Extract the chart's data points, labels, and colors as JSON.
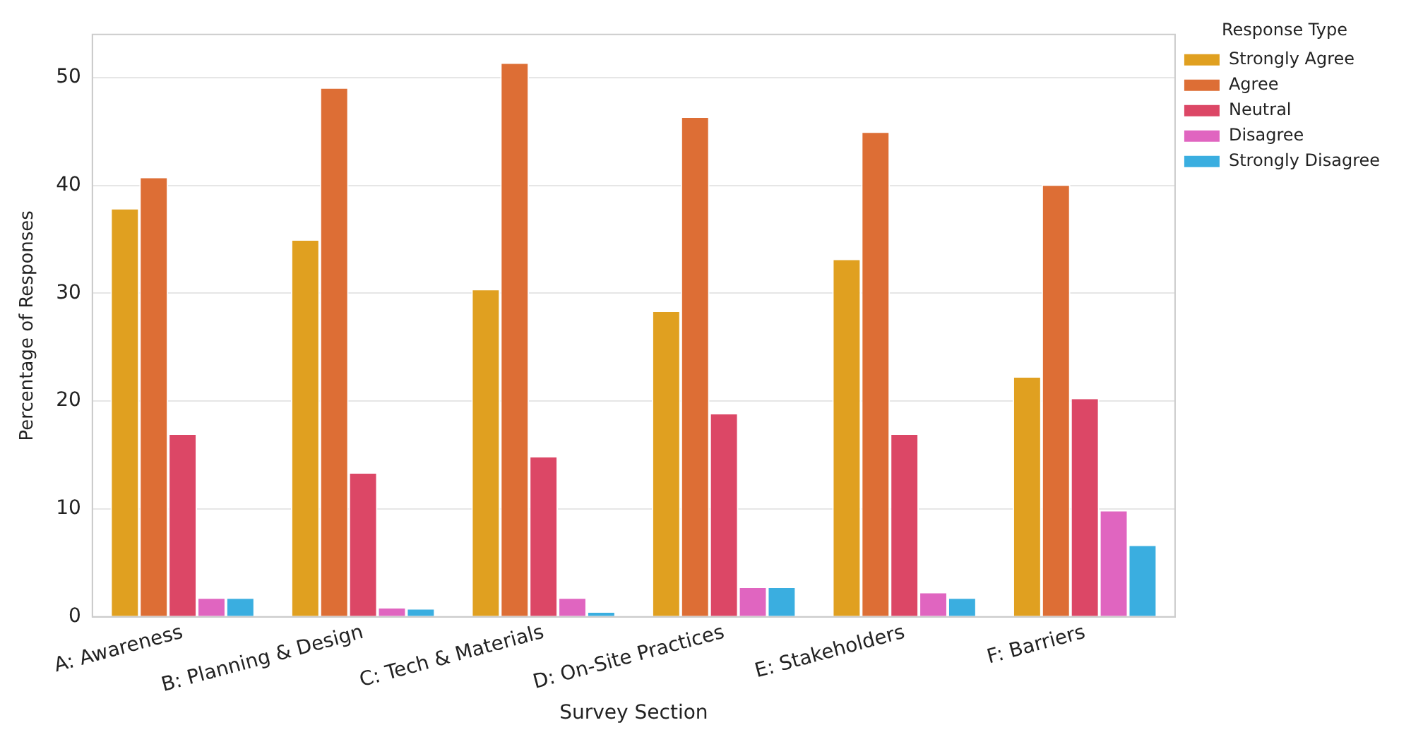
{
  "chart_data": {
    "type": "bar",
    "xlabel": "Survey Section",
    "ylabel": "Percentage of Responses",
    "legend_title": "Response Type",
    "categories": [
      "A: Awareness",
      "B: Planning & Design",
      "C: Tech & Materials",
      "D: On-Site Practices",
      "E: Stakeholders",
      "F: Barriers"
    ],
    "series": [
      {
        "name": "Strongly Agree",
        "color": "#e0a020",
        "values": [
          37.9,
          35.0,
          30.4,
          28.4,
          33.2,
          22.3
        ]
      },
      {
        "name": "Agree",
        "color": "#dd6e35",
        "values": [
          40.8,
          49.1,
          51.4,
          46.4,
          45.0,
          40.1
        ]
      },
      {
        "name": "Neutral",
        "color": "#dc4766",
        "values": [
          17.0,
          13.4,
          14.9,
          18.9,
          17.0,
          20.3
        ]
      },
      {
        "name": "Disagree",
        "color": "#e065c0",
        "values": [
          1.8,
          0.9,
          1.8,
          2.8,
          2.3,
          9.9
        ]
      },
      {
        "name": "Strongly Disagree",
        "color": "#3aaee0",
        "values": [
          1.8,
          0.8,
          0.5,
          2.8,
          1.8,
          6.7
        ]
      }
    ],
    "ylim": [
      0,
      54
    ],
    "yticks": [
      0,
      10,
      20,
      30,
      40,
      50
    ],
    "grid": "y",
    "legend": "top right"
  }
}
